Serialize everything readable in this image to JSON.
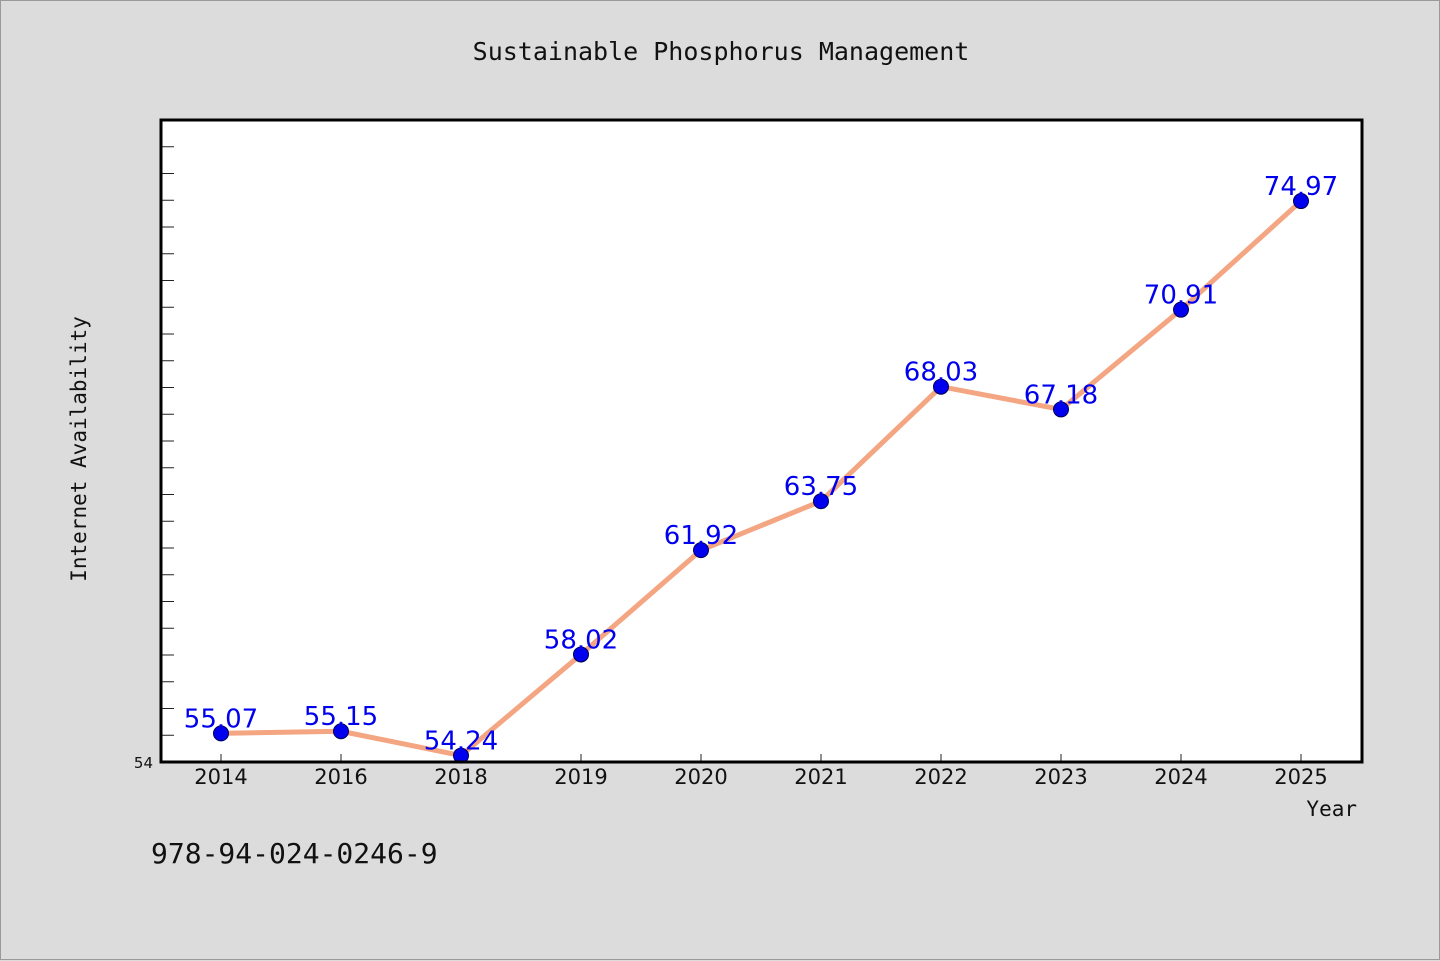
{
  "chart_data": {
    "type": "line",
    "title": "Sustainable Phosphorus Management",
    "xlabel": "Year",
    "ylabel": "Internet Availability",
    "categories": [
      "2014",
      "2016",
      "2018",
      "2019",
      "2020",
      "2021",
      "2022",
      "2023",
      "2024",
      "2025"
    ],
    "series": [
      {
        "values": [
          55.07,
          55.15,
          54.24,
          58.02,
          61.92,
          63.75,
          68.03,
          67.18,
          70.91,
          74.97
        ],
        "labels": [
          "55.07",
          "55.15",
          "54.24",
          "58.02",
          "61.92",
          "63.75",
          "68.03",
          "67.18",
          "70.91",
          "74.97"
        ]
      }
    ],
    "ylim": [
      54,
      78
    ],
    "ytick_labels": [
      "54"
    ],
    "grid": false,
    "colors": {
      "line": "#f4a582",
      "marker": "#0000ee",
      "data_label": "#0000ee",
      "background": "#dcdcdc",
      "plot_background": "#ffffff"
    }
  },
  "footer": {
    "isbn": "978-94-024-0246-9"
  }
}
